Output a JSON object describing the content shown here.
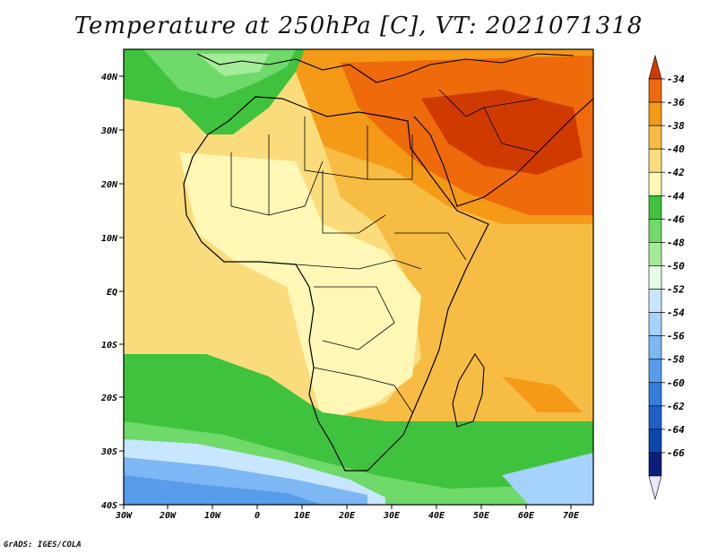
{
  "title": "Temperature at 250hPa [C], VT: 2021071318",
  "footer": "GrADS: IGES/COLA",
  "map": {
    "lon_labels": [
      "30W",
      "20W",
      "10W",
      "0",
      "10E",
      "20E",
      "30E",
      "40E",
      "50E",
      "60E",
      "70E"
    ],
    "lat_labels": [
      "40N",
      "30N",
      "20N",
      "10N",
      "EQ",
      "10S",
      "20S",
      "30S",
      "40S"
    ]
  },
  "colorbar": {
    "labels": [
      "-34",
      "-36",
      "-38",
      "-40",
      "-42",
      "-44",
      "-46",
      "-48",
      "-50",
      "-52",
      "-54",
      "-56",
      "-58",
      "-60",
      "-62",
      "-64",
      "-66"
    ],
    "colors": [
      "#cf3a00",
      "#ee6a0a",
      "#f49a16",
      "#f7bc43",
      "#fbdc7d",
      "#fff7b6",
      "#3fc23d",
      "#6fd96a",
      "#a5ec9a",
      "#e4fbe4",
      "#c8e6ff",
      "#a5d2ff",
      "#7db7f4",
      "#579de9",
      "#347ddb",
      "#1f5fc7",
      "#0c46ae",
      "#0b1e7c",
      "#e8e8ff"
    ]
  }
}
